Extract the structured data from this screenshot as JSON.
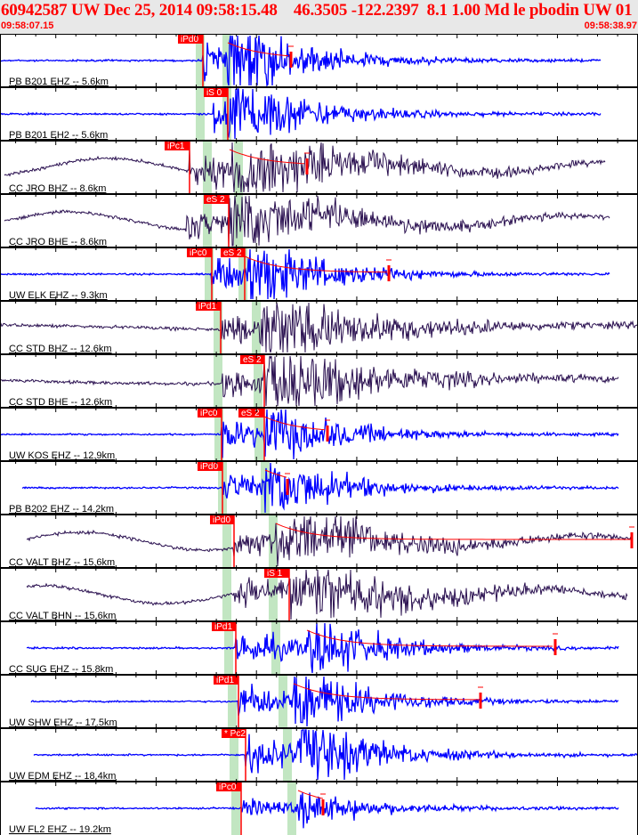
{
  "header": {
    "title": "60942587 UW Dec 25, 2014 09:58:15.48    46.3505 -122.2397  8.1 1.00 Md le pbodin UW 01    2",
    "start_time": "09:58:07.15",
    "end_time": "09:58:38.97"
  },
  "colors": {
    "header_bg": "#e8e8e8",
    "header_text": "#ff0000",
    "short_period": "#0000ff",
    "broadband": "#2a1050",
    "pick": "#ff0000",
    "predicted_band": "#c2e6c2"
  },
  "traces": [
    {
      "label": "PB B201 EHZ -- 5.6km",
      "picks": [
        "iPd0"
      ]
    },
    {
      "label": "PB B201 EH2 -- 5.6km",
      "picks": [
        "iS 0"
      ]
    },
    {
      "label": "CC JRO BHZ -- 8.6km",
      "picks": [
        "iPc1"
      ]
    },
    {
      "label": "CC JRO BHE -- 8.6km",
      "picks": [
        "eS 2"
      ]
    },
    {
      "label": "UW ELK EHZ -- 9.3km",
      "picks": [
        "iPc0",
        "eS 2"
      ]
    },
    {
      "label": "CC STD BHZ -- 12.6km",
      "picks": [
        "iPd1"
      ]
    },
    {
      "label": "CC STD BHE -- 12.6km",
      "picks": [
        "eS 2"
      ]
    },
    {
      "label": "UW KOS EHZ -- 12.9km",
      "picks": [
        "iPc0",
        "eS 2"
      ]
    },
    {
      "label": "PB B202 EHZ -- 14.2km",
      "picks": [
        "iPd0"
      ]
    },
    {
      "label": "CC VALT BHZ -- 15.6km",
      "picks": [
        "iPd0"
      ]
    },
    {
      "label": "CC VALT BHN -- 15.6km",
      "picks": [
        "iS 1"
      ]
    },
    {
      "label": "CC SUG EHZ -- 15.8km",
      "picks": [
        "iPd1"
      ]
    },
    {
      "label": "UW SHW EHZ -- 17.5km",
      "picks": [
        "iPd1"
      ]
    },
    {
      "label": "UW EDM EHZ -- 18.4km",
      "picks": [
        "* Pc2"
      ]
    },
    {
      "label": "UW FL2 EHZ -- 19.2km",
      "picks": [
        "iPc0"
      ]
    }
  ]
}
